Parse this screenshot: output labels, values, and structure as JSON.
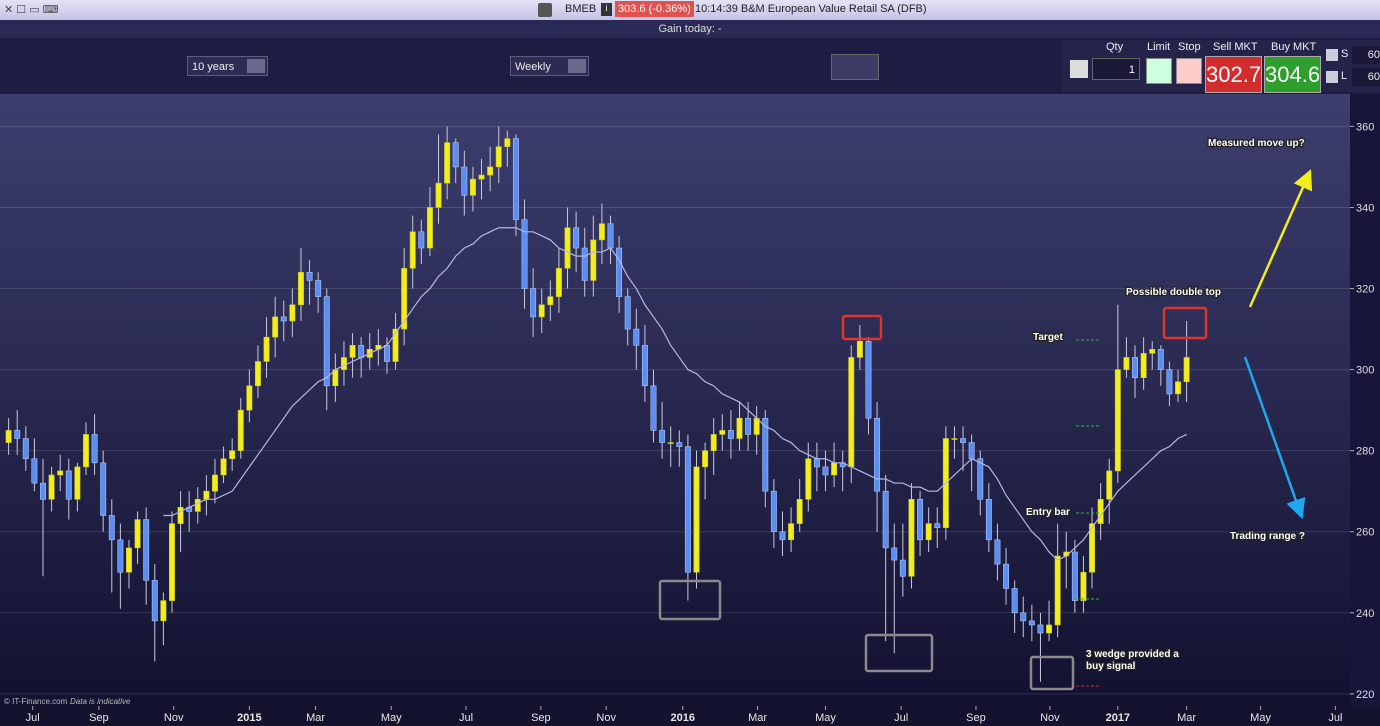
{
  "ui": {
    "symbol": "BMEB",
    "price": "303.6 (-0.36%)",
    "instrument": "10:14:39 B&M European Value Retail SA (DFB)",
    "gain": "Gain today: -",
    "period": "10 years",
    "interval": "Weekly",
    "qty_label": "Qty",
    "qty": "1",
    "limit_label": "Limit",
    "stop_label": "Stop",
    "sell_label": "Sell MKT",
    "sell": "302.7",
    "buy_label": "Buy MKT",
    "buy": "304.6",
    "s_label": "S",
    "s_value": "60",
    "l_label": "L",
    "l_value": "60",
    "copyright": "© IT-Finance.com",
    "disclaimer": "Data is indicative"
  },
  "chart_data": {
    "type": "candlestick",
    "up_color": "#f2ee1c",
    "down_color": "#5b8ef0",
    "wick_color": "#c9c9dc",
    "grid": true,
    "ylim": [
      217,
      368
    ],
    "yticks": [
      220,
      240,
      260,
      280,
      300,
      320,
      340,
      360
    ],
    "xlim": [
      -1,
      156
    ],
    "xticks": [
      {
        "value": 2.8,
        "label": "Jul"
      },
      {
        "value": 10.5,
        "label": "Sep"
      },
      {
        "value": 19.2,
        "label": "Nov"
      },
      {
        "value": 28,
        "label": "2015"
      },
      {
        "value": 35.7,
        "label": "Mar"
      },
      {
        "value": 44.5,
        "label": "May"
      },
      {
        "value": 53.2,
        "label": "Jul"
      },
      {
        "value": 61.9,
        "label": "Sep"
      },
      {
        "value": 69.5,
        "label": "Nov"
      },
      {
        "value": 78.4,
        "label": "2016"
      },
      {
        "value": 87.1,
        "label": "Mar"
      },
      {
        "value": 95,
        "label": "May"
      },
      {
        "value": 103.8,
        "label": "Jul"
      },
      {
        "value": 112.5,
        "label": "Sep"
      },
      {
        "value": 121.1,
        "label": "Nov"
      },
      {
        "value": 129,
        "label": "2017"
      },
      {
        "value": 137,
        "label": "Mar"
      },
      {
        "value": 145.6,
        "label": "May"
      },
      {
        "value": 154.3,
        "label": "Jul"
      }
    ],
    "open": [
      282,
      285,
      283,
      278,
      272,
      268,
      274,
      275,
      268,
      276,
      284,
      277,
      264,
      258,
      250,
      256,
      263,
      248,
      238,
      243,
      262,
      266,
      265,
      268,
      270,
      274,
      278,
      280,
      290,
      296,
      302,
      308,
      313,
      312,
      316,
      324,
      322,
      318,
      296,
      300,
      303,
      306,
      303,
      305,
      306,
      302,
      310,
      325,
      334,
      330,
      340,
      346,
      356,
      350,
      343,
      347,
      348,
      350,
      355,
      357,
      337,
      320,
      313,
      316,
      318,
      325,
      335,
      330,
      322,
      332,
      336,
      330,
      318,
      310,
      306,
      296,
      285,
      282,
      282,
      281,
      250,
      276,
      280,
      284,
      285,
      283,
      288,
      284,
      288,
      270,
      260,
      258,
      262,
      268,
      278,
      276,
      274,
      277,
      276,
      303,
      307,
      288,
      270,
      256,
      253,
      249,
      268,
      258,
      262,
      261,
      283,
      283,
      282,
      278,
      268,
      258,
      252,
      246,
      240,
      238,
      237,
      235,
      237,
      254,
      255,
      243,
      250,
      262,
      268,
      275,
      300,
      303,
      298,
      304,
      305,
      300,
      294,
      297
    ],
    "high": [
      288,
      290,
      286,
      283,
      278,
      276,
      279,
      278,
      277,
      287,
      289,
      280,
      268,
      262,
      258,
      265,
      266,
      252,
      245,
      265,
      270,
      270,
      271,
      274,
      278,
      281,
      283,
      293,
      300,
      306,
      313,
      318,
      317,
      320,
      330,
      327,
      324,
      320,
      304,
      307,
      309,
      308,
      309,
      310,
      308,
      314,
      330,
      338,
      337,
      345,
      358,
      360,
      357,
      354,
      350,
      352,
      355,
      360,
      359,
      358,
      342,
      325,
      320,
      322,
      330,
      340,
      339,
      335,
      338,
      341,
      338,
      333,
      320,
      315,
      311,
      300,
      292,
      286,
      285,
      284,
      280,
      282,
      288,
      289,
      290,
      292,
      292,
      291,
      290,
      273,
      265,
      266,
      273,
      282,
      282,
      280,
      282,
      280,
      306,
      311,
      308,
      292,
      274,
      262,
      262,
      272,
      270,
      266,
      266,
      286,
      286,
      286,
      284,
      280,
      272,
      262,
      256,
      248,
      244,
      242,
      240,
      243,
      262,
      260,
      258,
      254,
      266,
      272,
      278,
      316,
      308,
      306,
      308,
      307,
      306,
      302,
      300,
      312
    ],
    "low": [
      279,
      279,
      275,
      270,
      249,
      265,
      270,
      263,
      265,
      274,
      274,
      260,
      245,
      241,
      246,
      252,
      242,
      228,
      232,
      240,
      255,
      260,
      262,
      264,
      267,
      272,
      275,
      278,
      287,
      293,
      298,
      303,
      307,
      308,
      312,
      316,
      314,
      290,
      292,
      296,
      298,
      298,
      300,
      301,
      299,
      300,
      306,
      320,
      326,
      328,
      336,
      342,
      346,
      338,
      339,
      342,
      344,
      346,
      350,
      333,
      315,
      308,
      309,
      312,
      314,
      320,
      324,
      318,
      318,
      326,
      326,
      314,
      306,
      300,
      292,
      282,
      278,
      276,
      276,
      243,
      246,
      268,
      274,
      280,
      278,
      280,
      280,
      279,
      266,
      256,
      254,
      255,
      260,
      265,
      270,
      270,
      271,
      270,
      272,
      300,
      284,
      260,
      233,
      230,
      244,
      246,
      254,
      255,
      256,
      258,
      278,
      275,
      270,
      264,
      255,
      248,
      242,
      235,
      234,
      233,
      223,
      233,
      234,
      246,
      240,
      240,
      246,
      258,
      262,
      272,
      298,
      293,
      295,
      300,
      296,
      291,
      292,
      292
    ],
    "close": [
      285,
      283,
      278,
      272,
      268,
      274,
      275,
      268,
      276,
      284,
      277,
      264,
      258,
      250,
      256,
      263,
      248,
      238,
      243,
      262,
      266,
      265,
      268,
      270,
      274,
      278,
      280,
      290,
      296,
      302,
      308,
      313,
      312,
      316,
      324,
      322,
      318,
      296,
      300,
      303,
      306,
      303,
      305,
      306,
      302,
      310,
      325,
      334,
      330,
      340,
      346,
      356,
      350,
      343,
      347,
      348,
      350,
      355,
      357,
      337,
      320,
      313,
      316,
      318,
      325,
      335,
      330,
      322,
      332,
      336,
      330,
      318,
      310,
      306,
      296,
      285,
      282,
      282,
      281,
      250,
      276,
      280,
      284,
      285,
      283,
      288,
      284,
      288,
      270,
      260,
      258,
      262,
      268,
      278,
      276,
      274,
      277,
      276,
      303,
      307,
      288,
      270,
      256,
      253,
      249,
      268,
      258,
      262,
      261,
      283,
      283,
      282,
      278,
      268,
      258,
      252,
      246,
      240,
      238,
      237,
      235,
      237,
      254,
      255,
      243,
      250,
      262,
      268,
      275,
      300,
      303,
      298,
      304,
      305,
      300,
      294,
      297,
      303
    ],
    "moving_average": {
      "color": "#b9b5e2",
      "values": [
        null,
        null,
        null,
        null,
        null,
        null,
        null,
        null,
        null,
        null,
        null,
        null,
        null,
        null,
        null,
        null,
        null,
        null,
        264,
        264,
        265,
        266,
        267,
        268,
        268,
        269,
        270,
        273,
        276,
        279,
        282,
        285,
        288,
        291,
        293,
        295,
        297,
        298,
        300,
        301,
        302,
        303,
        304,
        305,
        306,
        309,
        312,
        315,
        318,
        320,
        323,
        325,
        328,
        330,
        331,
        333,
        334,
        335,
        335,
        335,
        334,
        334,
        333,
        332,
        330,
        329,
        328,
        328,
        329,
        329,
        330,
        327,
        323,
        320,
        316,
        313,
        310,
        306,
        303,
        300,
        299,
        297,
        296,
        294,
        293,
        292,
        290,
        288,
        286,
        285,
        283,
        282,
        280,
        279,
        278,
        278,
        277,
        277,
        276,
        275,
        274,
        273,
        273,
        272,
        272,
        271,
        271,
        270,
        270,
        272,
        274,
        276,
        278,
        277,
        276,
        273,
        269,
        266,
        263,
        260,
        258,
        255,
        253,
        254,
        256,
        258,
        261,
        264,
        267,
        270,
        272,
        274,
        276,
        278,
        280,
        281,
        283,
        284
      ]
    },
    "annotations": [
      "Measured move up?",
      "Possible double top",
      "Target",
      "Entry bar",
      "Trading range ?",
      "3 wedge provided a",
      "buy signal"
    ]
  }
}
